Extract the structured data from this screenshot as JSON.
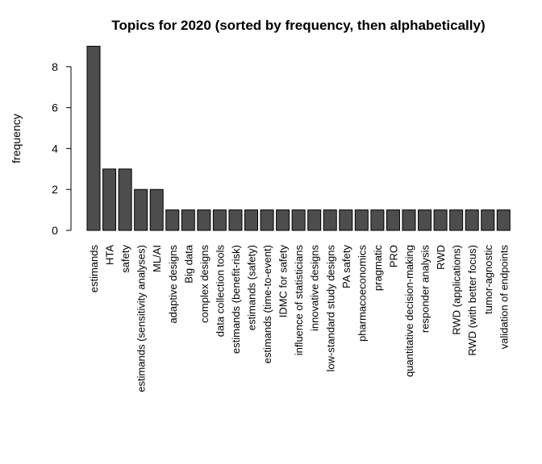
{
  "chart_data": {
    "type": "bar",
    "title": "Topics for 2020 (sorted by frequency, then alphabetically)",
    "xlabel": "",
    "ylabel": "frequency",
    "ylim": [
      0,
      9
    ],
    "yticks": [
      0,
      2,
      4,
      6,
      8
    ],
    "grid": false,
    "bar_color": "#4d4d4d",
    "categories": [
      "estimands",
      "HTA",
      "safety",
      "estimands (sensitivity analyses)",
      "ML/AI",
      "adaptive designs",
      "Big data",
      "complex designs",
      "data collection tools",
      "estimands (benefit-risk)",
      "estimands (safety)",
      "estimands (time-to-event)",
      "IDMC for safety",
      "influence of statisticians",
      "innovative designs",
      "low-standard study designs",
      "PA safety",
      "pharmacoeconomics",
      "pragmatic",
      "PRO",
      "quantitative decision-making",
      "responder analysis",
      "RWD",
      "RWD (applications)",
      "RWD (with better focus)",
      "tumor-agnostic",
      "validation of endpoints"
    ],
    "values": [
      9,
      3,
      3,
      2,
      2,
      1,
      1,
      1,
      1,
      1,
      1,
      1,
      1,
      1,
      1,
      1,
      1,
      1,
      1,
      1,
      1,
      1,
      1,
      1,
      1,
      1,
      1
    ]
  }
}
